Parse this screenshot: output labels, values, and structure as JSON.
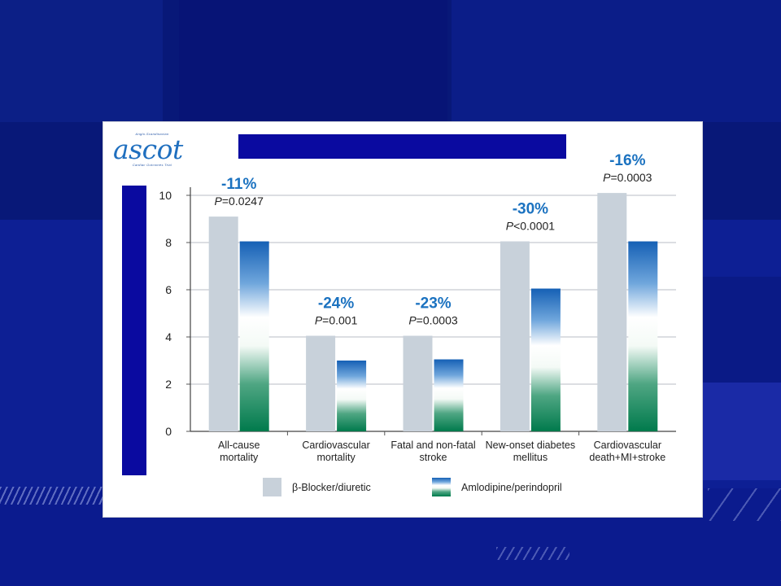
{
  "chart_data": {
    "type": "bar",
    "title": "",
    "xlabel": "",
    "ylabel": "",
    "ylim": [
      0,
      10
    ],
    "yticks": [
      "0",
      "2",
      "4",
      "6",
      "8",
      "10"
    ],
    "categories": [
      [
        "All-cause",
        "mortality"
      ],
      [
        "Cardiovascular",
        "mortality"
      ],
      [
        "Fatal and non-fatal",
        "stroke"
      ],
      [
        "New-onset diabetes",
        "mellitus"
      ],
      [
        "Cardiovascular",
        "death+MI+stroke"
      ]
    ],
    "series": [
      {
        "name": "β-Blocker/diuretic",
        "values": [
          9.1,
          4.05,
          4.05,
          8.05,
          10.1
        ]
      },
      {
        "name": "Amlodipine/perindopril",
        "values": [
          8.05,
          3.0,
          3.05,
          6.05,
          8.05
        ]
      }
    ],
    "annotations": [
      {
        "pct": "-11%",
        "p_sym": "=",
        "p_val": "0.0247"
      },
      {
        "pct": "-24%",
        "p_sym": "=",
        "p_val": "0.001"
      },
      {
        "pct": "-23%",
        "p_sym": "=",
        "p_val": "0.0003"
      },
      {
        "pct": "-30%",
        "p_sym": "<",
        "p_val": "0.0001"
      },
      {
        "pct": "-16%",
        "p_sym": "=",
        "p_val": "0.0003"
      }
    ],
    "grid": true,
    "legend_position": "bottom"
  },
  "logo": {
    "word": "ascot",
    "line_top": "Anglo-Scandinavian",
    "line_bottom": "Cardiac Outcomes Trial"
  },
  "p_label": "P",
  "colors": {
    "pct_text": "#1b72c0",
    "beta_bar": "#c8d1da",
    "amlo_top": "#1560b5",
    "amlo_bottom": "#007a4c",
    "grid": "#b9bcc4",
    "title_bar": "#0a0aa0"
  }
}
